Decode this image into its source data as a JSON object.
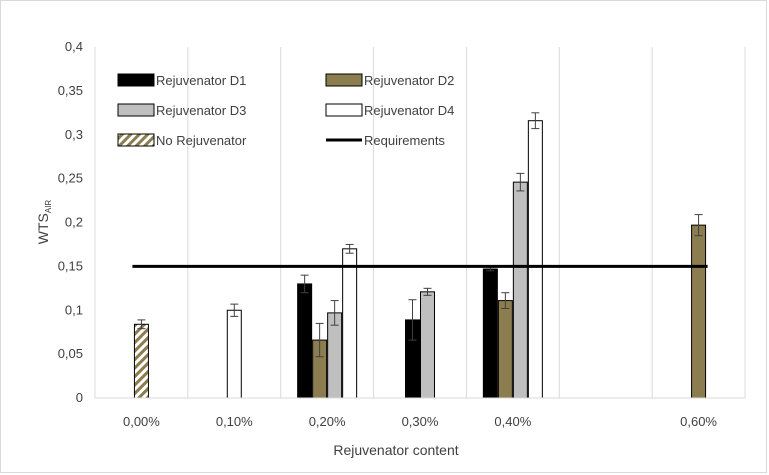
{
  "chart_data": {
    "type": "bar",
    "xlabel": "Rejuvenator content",
    "ylabel_main": "WTS",
    "ylabel_sub": "AIR",
    "categories": [
      "0,00%",
      "0,10%",
      "0,20%",
      "0,30%",
      "0,40%",
      "",
      "0,60%"
    ],
    "ylim": [
      0,
      0.4
    ],
    "yticks": [
      0,
      0.05,
      0.1,
      0.15,
      0.2,
      0.25,
      0.3,
      0.35,
      0.4
    ],
    "ytick_labels": [
      "0",
      "0,05",
      "0,1",
      "0,15",
      "0,2",
      "0,25",
      "0,3",
      "0,35",
      "0,4"
    ],
    "grid": "vertical",
    "legend_position": "top-left",
    "series": [
      {
        "name": "Rejuvenator D1",
        "color": "#000000",
        "pattern": "solid",
        "values": [
          null,
          null,
          0.13,
          0.089,
          0.147,
          null,
          null
        ],
        "errors": [
          null,
          null,
          0.01,
          0.023,
          0.002,
          null,
          null
        ]
      },
      {
        "name": "Rejuvenator D2",
        "color": "#8b7d4f",
        "pattern": "solid",
        "values": [
          null,
          null,
          0.066,
          null,
          0.111,
          null,
          0.197
        ],
        "errors": [
          null,
          null,
          0.019,
          null,
          0.009,
          null,
          0.012
        ]
      },
      {
        "name": "Rejuvenator D3",
        "color": "#bfbfbf",
        "pattern": "solid",
        "values": [
          null,
          null,
          0.097,
          0.121,
          0.246,
          null,
          null
        ],
        "errors": [
          null,
          null,
          0.014,
          0.004,
          0.01,
          null,
          null
        ]
      },
      {
        "name": "Rejuvenator D4",
        "color": "#ffffff",
        "pattern": "solid",
        "values": [
          null,
          0.1,
          0.17,
          null,
          0.316,
          null,
          null
        ],
        "errors": [
          null,
          0.007,
          0.005,
          null,
          0.009,
          null,
          null
        ]
      },
      {
        "name": "No Rejuvenator",
        "color": "#8b7d4f",
        "pattern": "diagonal-stripes",
        "values": [
          0.084,
          null,
          null,
          null,
          null,
          null,
          null
        ],
        "errors": [
          0.005,
          null,
          null,
          null,
          null,
          null,
          null
        ]
      }
    ],
    "reference_line": {
      "name": "Requirements",
      "value": 0.15,
      "color": "#000000"
    }
  }
}
